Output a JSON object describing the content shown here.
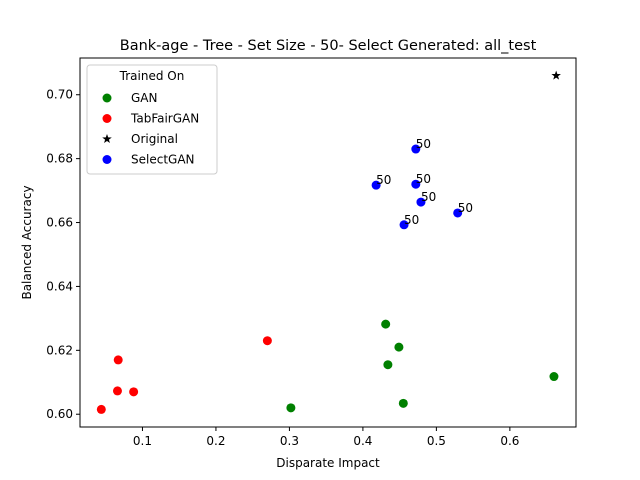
{
  "chart_data": {
    "type": "scatter",
    "title": "Bank-age - Tree - Set Size - 50- Select Generated: all_test",
    "xlabel": "Disparate Impact",
    "ylabel": "Balanced Accuracy",
    "xlim": [
      0.015,
      0.69
    ],
    "ylim": [
      0.596,
      0.7115
    ],
    "xticks": [
      0.1,
      0.2,
      0.3,
      0.4,
      0.5,
      0.6
    ],
    "xtick_labels": [
      "0.1",
      "0.2",
      "0.3",
      "0.4",
      "0.5",
      "0.6"
    ],
    "yticks": [
      0.6,
      0.62,
      0.64,
      0.66,
      0.68,
      0.7
    ],
    "ytick_labels": [
      "0.60",
      "0.62",
      "0.64",
      "0.66",
      "0.68",
      "0.70"
    ],
    "grid": false,
    "legend": {
      "title": "Trained On",
      "placement": "top-left"
    },
    "series": [
      {
        "name": "GAN",
        "marker": "circle",
        "color": "#008000",
        "points": [
          {
            "x": 0.431,
            "y": 0.6282
          },
          {
            "x": 0.449,
            "y": 0.621
          },
          {
            "x": 0.434,
            "y": 0.6155
          },
          {
            "x": 0.455,
            "y": 0.6034
          },
          {
            "x": 0.302,
            "y": 0.602
          },
          {
            "x": 0.66,
            "y": 0.6118
          }
        ]
      },
      {
        "name": "TabFairGAN",
        "marker": "circle",
        "color": "#ff0000",
        "points": [
          {
            "x": 0.27,
            "y": 0.623
          },
          {
            "x": 0.067,
            "y": 0.617
          },
          {
            "x": 0.066,
            "y": 0.6073
          },
          {
            "x": 0.088,
            "y": 0.607
          },
          {
            "x": 0.044,
            "y": 0.6015
          }
        ]
      },
      {
        "name": "Original",
        "marker": "star",
        "color": "#000000",
        "points": [
          {
            "x": 0.663,
            "y": 0.706
          }
        ]
      },
      {
        "name": "SelectGAN",
        "marker": "circle",
        "color": "#0000ff",
        "points": [
          {
            "x": 0.472,
            "y": 0.683,
            "label": "50"
          },
          {
            "x": 0.418,
            "y": 0.6717,
            "label": "50"
          },
          {
            "x": 0.472,
            "y": 0.672,
            "label": "50"
          },
          {
            "x": 0.479,
            "y": 0.6664,
            "label": "50"
          },
          {
            "x": 0.529,
            "y": 0.663,
            "label": "50"
          },
          {
            "x": 0.456,
            "y": 0.6593,
            "label": "50"
          }
        ]
      }
    ]
  }
}
